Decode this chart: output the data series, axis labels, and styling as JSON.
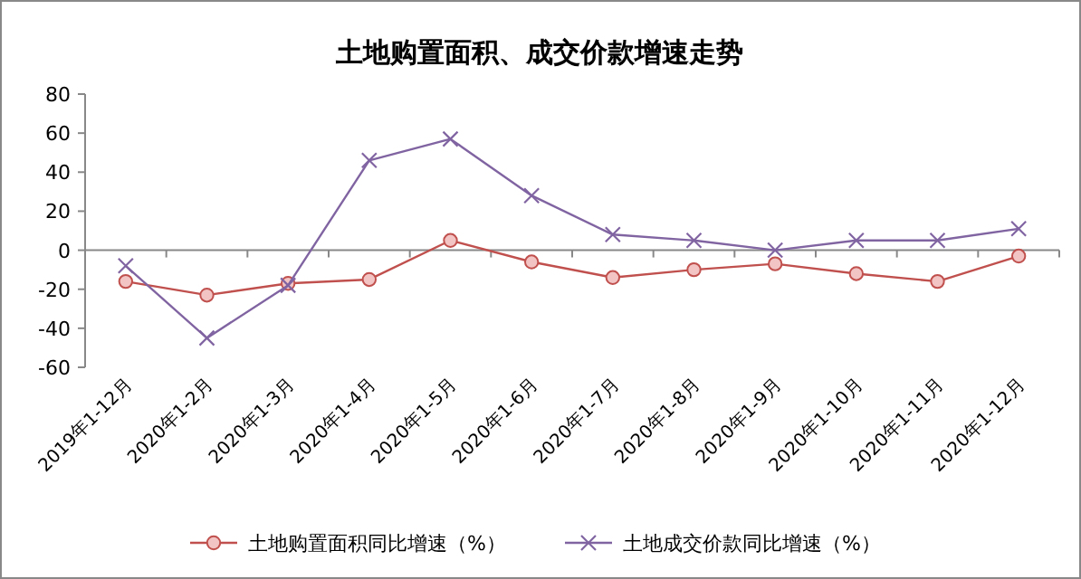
{
  "chart_data": {
    "type": "line",
    "title": "土地购置面积、成交价款增速走势",
    "categories": [
      "2019年1-12月",
      "2020年1-2月",
      "2020年1-3月",
      "2020年1-4月",
      "2020年1-5月",
      "2020年1-6月",
      "2020年1-7月",
      "2020年1-8月",
      "2020年1-9月",
      "2020年1-10月",
      "2020年1-11月",
      "2020年1-12月"
    ],
    "series": [
      {
        "name": "土地购置面积同比增速（%）",
        "color": "#c0504d",
        "marker": "circle",
        "values": [
          -16,
          -23,
          -17,
          -15,
          5,
          -6,
          -14,
          -10,
          -7,
          -12,
          -16,
          -3
        ]
      },
      {
        "name": "土地成交价款同比增速（%）",
        "color": "#8064a2",
        "marker": "cross",
        "values": [
          -8,
          -45,
          -18,
          46,
          57,
          28,
          8,
          5,
          0,
          5,
          5,
          11
        ]
      }
    ],
    "ylim": [
      -60,
      80
    ],
    "yticks": [
      -60,
      -40,
      -20,
      0,
      20,
      40,
      60,
      80
    ],
    "legend": "bottom"
  }
}
